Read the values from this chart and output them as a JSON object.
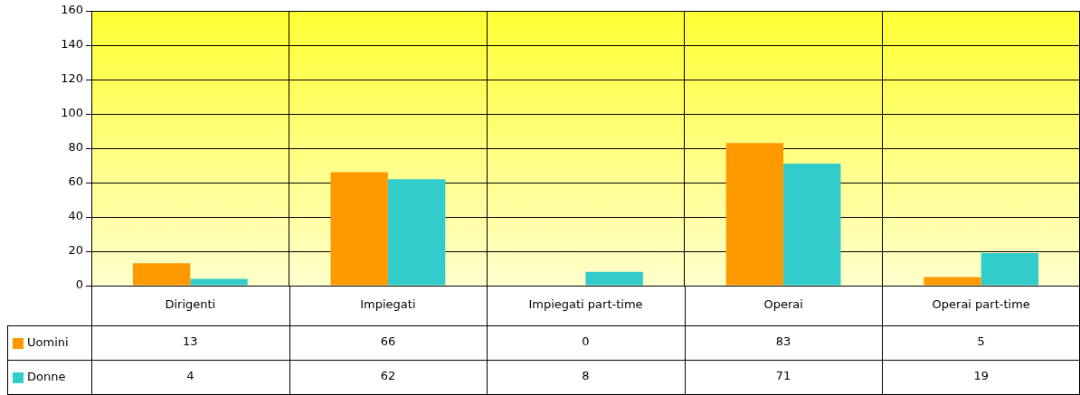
{
  "chart_data": {
    "type": "bar",
    "categories": [
      "Dirigenti",
      "Impiegati",
      "Impiegati part-time",
      "Operai",
      "Operai part-time"
    ],
    "series": [
      {
        "name": "Uomini",
        "color": "#ff9900",
        "values": [
          13,
          66,
          0,
          83,
          5
        ]
      },
      {
        "name": "Donne",
        "color": "#33cccc",
        "values": [
          4,
          62,
          8,
          71,
          19
        ]
      }
    ],
    "ylim": [
      0,
      160
    ],
    "yticks": [
      0,
      20,
      40,
      60,
      80,
      100,
      120,
      140,
      160
    ],
    "grid": true,
    "legend": "bottom left",
    "data_labels": true
  }
}
